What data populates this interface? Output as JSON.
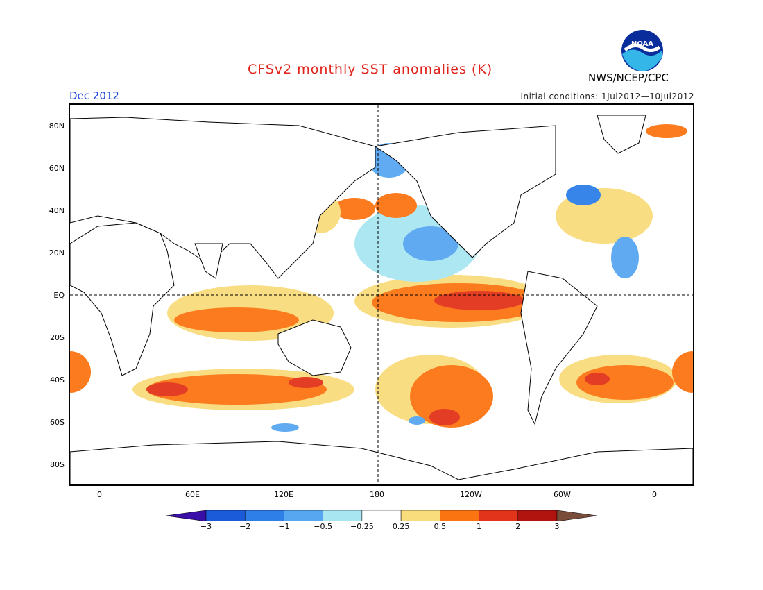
{
  "title": "CFSv2 monthly SST anomalies (K)",
  "month": "Dec 2012",
  "initial_conditions": "Initial conditions: 1Jul2012—10Jul2012",
  "agency": "NWS/NCEP/CPC",
  "logo_text": "NOAA",
  "lat_labels": [
    "80N",
    "60N",
    "40N",
    "20N",
    "EQ",
    "20S",
    "40S",
    "60S",
    "80S"
  ],
  "lon_labels": [
    "0",
    "60E",
    "120E",
    "180",
    "120W",
    "60W",
    "0"
  ],
  "colorbar": {
    "levels": [
      "−3",
      "−2",
      "−1",
      "−0.5",
      "−0.25",
      "0.25",
      "0.5",
      "1",
      "2",
      "3"
    ],
    "colors": [
      "#3a0fa8",
      "#1b5ad8",
      "#2e7fe8",
      "#57a6f0",
      "#a8e6f2",
      "#ffffff",
      "#f9dc7c",
      "#fb7412",
      "#e2341a",
      "#b1130e",
      "#7a4c3a"
    ]
  },
  "colors": {
    "title": "#e0241b",
    "month": "#2048d8",
    "land_outline": "#000000"
  }
}
